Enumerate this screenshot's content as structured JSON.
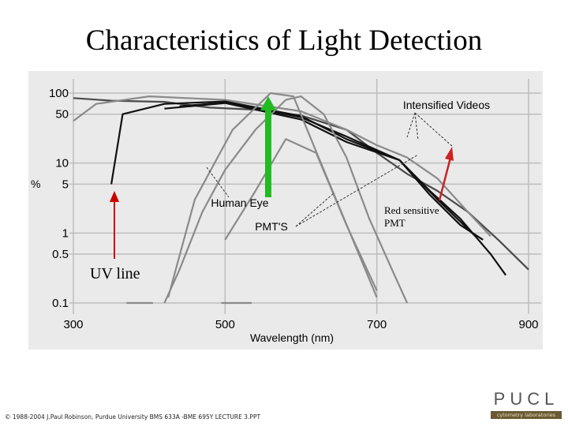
{
  "title": "Characteristics of Light Detection",
  "footer": "© 1988-2004 J.Paul Robinson, Purdue University BMS 633A -BME 695Y LECTURE 3.PPT",
  "logo": {
    "main": "PUCL",
    "sub": "cytometry laboratories"
  },
  "colors": {
    "background": "#eaeaea",
    "uv_arrow": "#cc0000",
    "red_arrow": "#cc2222",
    "pmt_arrow": "#22bb22"
  },
  "chart_data": {
    "type": "line",
    "title": "",
    "xlabel": "Wavelength (nm)",
    "ylabel": "%",
    "xlim": [
      300,
      900
    ],
    "ylim": [
      0.1,
      100
    ],
    "yscale": "log",
    "grid": true,
    "x_ticks": [
      "300",
      "500",
      "700",
      "900"
    ],
    "y_ticks": [
      "100",
      "50",
      "10",
      "5",
      "1",
      "0.5",
      "0.1"
    ],
    "series": [
      {
        "tone": "dark",
        "points": [
          [
            300,
            85
          ],
          [
            350,
            78
          ],
          [
            420,
            75
          ],
          [
            480,
            62
          ],
          [
            540,
            58
          ],
          [
            600,
            48
          ],
          [
            660,
            30
          ],
          [
            700,
            14
          ],
          [
            740,
            7
          ],
          [
            780,
            4
          ],
          [
            820,
            2
          ],
          [
            860,
            0.8
          ],
          [
            900,
            0.3
          ]
        ]
      },
      {
        "tone": "gray",
        "points": [
          [
            300,
            40
          ],
          [
            330,
            70
          ],
          [
            400,
            90
          ],
          [
            500,
            80
          ],
          [
            600,
            55
          ],
          [
            660,
            30
          ],
          [
            700,
            18
          ],
          [
            740,
            12
          ],
          [
            780,
            6
          ],
          [
            820,
            2
          ],
          [
            850,
            0.9
          ]
        ]
      },
      {
        "tone": "black",
        "points": [
          [
            350,
            5
          ],
          [
            365,
            50
          ],
          [
            420,
            70
          ],
          [
            500,
            76
          ],
          [
            600,
            47
          ],
          [
            660,
            22
          ],
          [
            730,
            11
          ],
          [
            780,
            3
          ],
          [
            830,
            0.9
          ]
        ]
      },
      {
        "tone": "black",
        "points": [
          [
            420,
            60
          ],
          [
            500,
            72
          ],
          [
            600,
            42
          ],
          [
            660,
            20
          ],
          [
            730,
            11
          ],
          [
            770,
            4
          ],
          [
            810,
            1.6
          ],
          [
            850,
            0.5
          ],
          [
            870,
            0.25
          ]
        ]
      },
      {
        "tone": "black",
        "points": [
          [
            440,
            65
          ],
          [
            500,
            73
          ],
          [
            600,
            45
          ],
          [
            660,
            24
          ],
          [
            730,
            11
          ],
          [
            770,
            3.5
          ],
          [
            810,
            1.3
          ],
          [
            840,
            0.8
          ]
        ]
      },
      {
        "tone": "gray",
        "points": [
          [
            425,
            0.12
          ],
          [
            460,
            3
          ],
          [
            510,
            30
          ],
          [
            560,
            100
          ],
          [
            590,
            90
          ],
          [
            630,
            8
          ],
          [
            680,
            0.4
          ],
          [
            700,
            0.12
          ]
        ]
      },
      {
        "tone": "gray",
        "points": [
          [
            420,
            0.1
          ],
          [
            440,
            0.3
          ],
          [
            470,
            2
          ],
          [
            500,
            8
          ],
          [
            540,
            30
          ],
          [
            580,
            80
          ],
          [
            600,
            90
          ],
          [
            630,
            50
          ],
          [
            660,
            12
          ],
          [
            690,
            1.6
          ],
          [
            720,
            0.3
          ],
          [
            740,
            0.1
          ]
        ]
      },
      {
        "tone": "gray",
        "points": [
          [
            500,
            0.8
          ],
          [
            540,
            4
          ],
          [
            580,
            22
          ],
          [
            620,
            14
          ],
          [
            660,
            1.3
          ],
          [
            700,
            0.15
          ]
        ]
      }
    ],
    "annotations": [
      {
        "text": "Intensified Videos",
        "x": 700,
        "y": 60
      },
      {
        "text": "Human Eye",
        "x": 520,
        "y": 3
      },
      {
        "text": "PMT'S",
        "x": 545,
        "y": 1.8
      },
      {
        "text": "UV line",
        "x": 310,
        "y": 0.3
      },
      {
        "text": "Red sensitive PMT",
        "x": 745,
        "y": 2.5
      }
    ]
  }
}
